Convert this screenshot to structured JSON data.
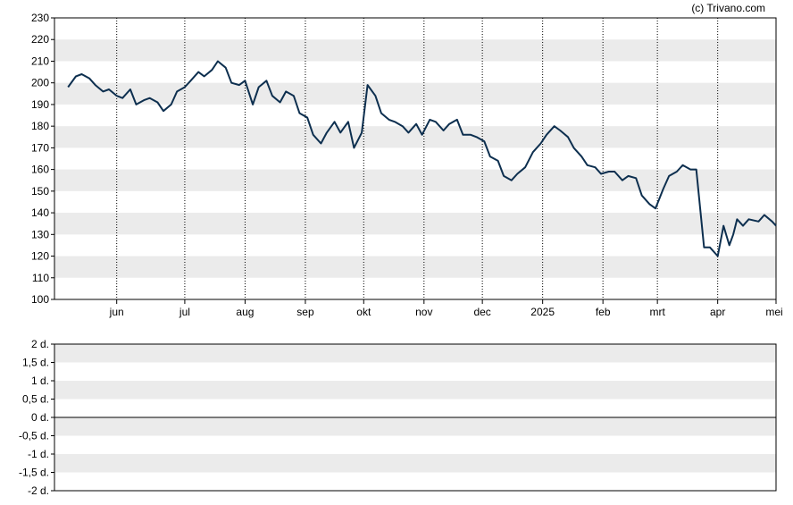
{
  "copyright": "(c) Trivano.com",
  "colors": {
    "line": "#0d2f4f",
    "band": "#ebebeb",
    "frame": "#000000",
    "background": "#ffffff"
  },
  "chart_data": [
    {
      "type": "line",
      "title": "",
      "xlabel": "",
      "ylabel": "",
      "ylim": [
        100,
        230
      ],
      "yticks": [
        100,
        110,
        120,
        130,
        140,
        150,
        160,
        170,
        180,
        190,
        200,
        210,
        220,
        230
      ],
      "xticks": [
        "jun",
        "jul",
        "aug",
        "sep",
        "okt",
        "nov",
        "dec",
        "2025",
        "feb",
        "mrt",
        "apr",
        "mei"
      ],
      "grid": "vertical dotted lines at month ticks, alternating horizontal bands",
      "series": [
        {
          "name": "",
          "x": [
            "2024-05-02",
            "2024-05-06",
            "2024-05-09",
            "2024-05-13",
            "2024-05-16",
            "2024-05-20",
            "2024-05-23",
            "2024-05-27",
            "2024-05-30",
            "2024-06-03",
            "2024-06-06",
            "2024-06-10",
            "2024-06-13",
            "2024-06-17",
            "2024-06-20",
            "2024-06-24",
            "2024-06-27",
            "2024-07-01",
            "2024-07-04",
            "2024-07-08",
            "2024-07-11",
            "2024-07-15",
            "2024-07-18",
            "2024-07-22",
            "2024-07-25",
            "2024-07-29",
            "2024-08-01",
            "2024-08-05",
            "2024-08-08",
            "2024-08-12",
            "2024-08-15",
            "2024-08-19",
            "2024-08-22",
            "2024-08-26",
            "2024-08-29",
            "2024-09-02",
            "2024-09-05",
            "2024-09-09",
            "2024-09-12",
            "2024-09-16",
            "2024-09-19",
            "2024-09-23",
            "2024-09-26",
            "2024-09-30",
            "2024-10-03",
            "2024-10-07",
            "2024-10-10",
            "2024-10-14",
            "2024-10-17",
            "2024-10-21",
            "2024-10-24",
            "2024-10-28",
            "2024-10-31",
            "2024-11-04",
            "2024-11-07",
            "2024-11-11",
            "2024-11-14",
            "2024-11-18",
            "2024-11-21",
            "2024-11-25",
            "2024-11-28",
            "2024-12-02",
            "2024-12-05",
            "2024-12-09",
            "2024-12-12",
            "2024-12-16",
            "2024-12-19",
            "2024-12-23",
            "2024-12-27",
            "2024-12-31",
            "2025-01-03",
            "2025-01-07",
            "2025-01-10",
            "2025-01-14",
            "2025-01-17",
            "2025-01-21",
            "2025-01-24",
            "2025-01-28",
            "2025-01-31",
            "2025-02-04",
            "2025-02-07",
            "2025-02-11",
            "2025-02-14",
            "2025-02-18",
            "2025-02-21",
            "2025-02-25",
            "2025-02-28",
            "2025-03-04",
            "2025-03-07",
            "2025-03-11",
            "2025-03-14",
            "2025-03-18",
            "2025-03-21",
            "2025-03-25",
            "2025-03-28",
            "2025-04-01",
            "2025-04-04",
            "2025-04-07",
            "2025-04-09",
            "2025-04-11",
            "2025-04-14",
            "2025-04-17",
            "2025-04-22",
            "2025-04-25",
            "2025-04-29",
            "2025-05-01"
          ],
          "y": [
            198,
            203,
            204,
            202,
            199,
            196,
            197,
            194,
            193,
            197,
            190,
            192,
            193,
            191,
            187,
            190,
            196,
            198,
            201,
            205,
            203,
            206,
            210,
            207,
            200,
            199,
            201,
            190,
            198,
            201,
            194,
            191,
            196,
            194,
            186,
            184,
            176,
            172,
            177,
            182,
            177,
            182,
            170,
            177,
            199,
            194,
            186,
            183,
            182,
            180,
            177,
            181,
            176,
            183,
            182,
            178,
            181,
            183,
            176,
            176,
            175,
            173,
            166,
            164,
            157,
            155,
            158,
            161,
            168,
            172,
            176,
            180,
            178,
            175,
            170,
            166,
            162,
            161,
            158,
            159,
            159,
            155,
            157,
            156,
            148,
            144,
            142,
            151,
            157,
            159,
            162,
            160,
            160,
            124,
            124,
            120,
            134,
            125,
            130,
            137,
            134,
            137,
            136,
            139,
            136,
            134
          ]
        }
      ]
    },
    {
      "type": "area",
      "title": "",
      "xlabel": "",
      "ylabel": "",
      "ylim": [
        -2,
        2
      ],
      "yticks": [
        "2 d.",
        "1,5 d.",
        "1 d.",
        "0,5 d.",
        "0 d.",
        "-0,5 d.",
        "-1 d.",
        "-1,5 d.",
        "-2 d."
      ],
      "series": []
    }
  ]
}
